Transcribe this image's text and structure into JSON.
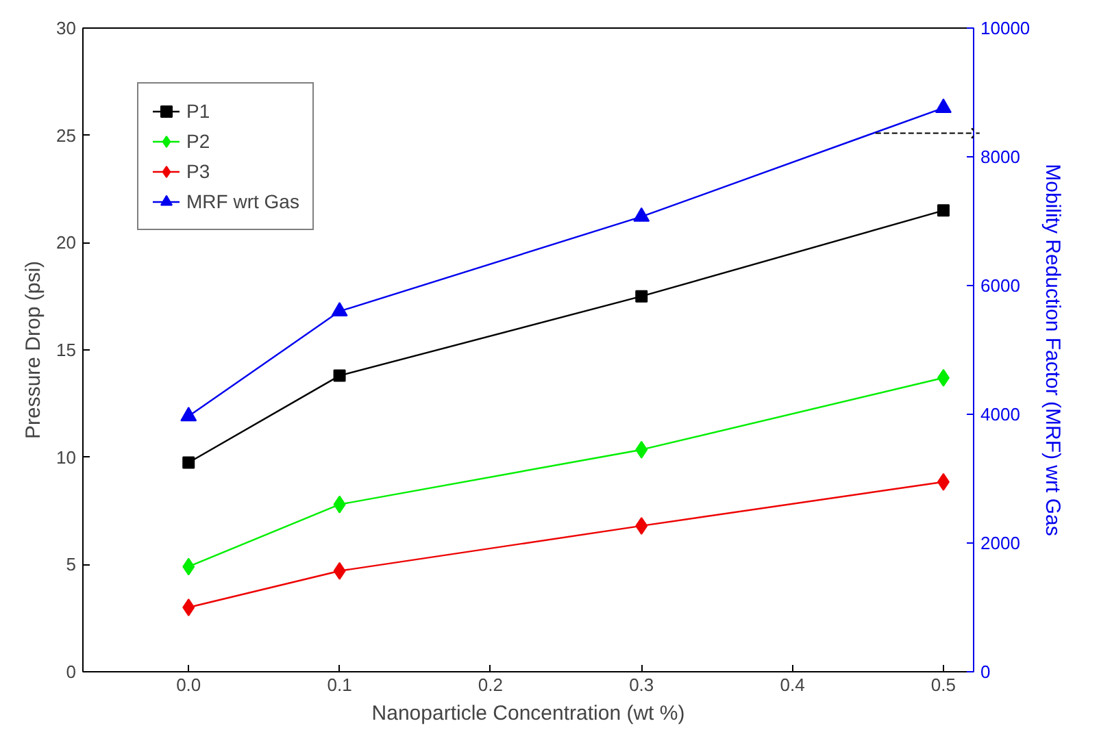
{
  "chart_data": {
    "type": "line",
    "xlabel": "Nanoparticle Concentration (wt %)",
    "ylabel": "Pressure Drop (psi)",
    "y2label": "Mobility Reduction Factor (MRF) wrt Gas",
    "x": [
      0.0,
      0.1,
      0.3,
      0.5
    ],
    "xlim": [
      -0.07,
      0.52
    ],
    "xticks": [
      {
        "value": 0,
        "label": "0.0"
      },
      0.1,
      0.2,
      0.3,
      0.4,
      0.5
    ],
    "ylim": [
      0,
      30
    ],
    "yticks": [
      0,
      5,
      10,
      15,
      20,
      25,
      30
    ],
    "y2lim": [
      0,
      10000
    ],
    "y2ticks": [
      0,
      2000,
      4000,
      6000,
      8000,
      10000
    ],
    "legend": "top left",
    "grid": false,
    "series": [
      {
        "name": "P1",
        "color": "#000000",
        "marker": "square",
        "values": [
          9.75,
          13.8,
          17.5,
          21.5
        ]
      },
      {
        "name": "P2",
        "color": "#00ee00",
        "marker": "diamond",
        "values": [
          4.9,
          7.8,
          10.35,
          13.7
        ]
      },
      {
        "name": "P3",
        "color": "#ee0000",
        "marker": "diamond",
        "values": [
          3.0,
          4.7,
          6.8,
          8.85
        ]
      },
      {
        "name": "MRF wrt Gas",
        "color": "#0000ee",
        "marker": "triangle",
        "axis": "y2",
        "values": [
          3970,
          5600,
          7070,
          8760
        ]
      }
    ]
  }
}
